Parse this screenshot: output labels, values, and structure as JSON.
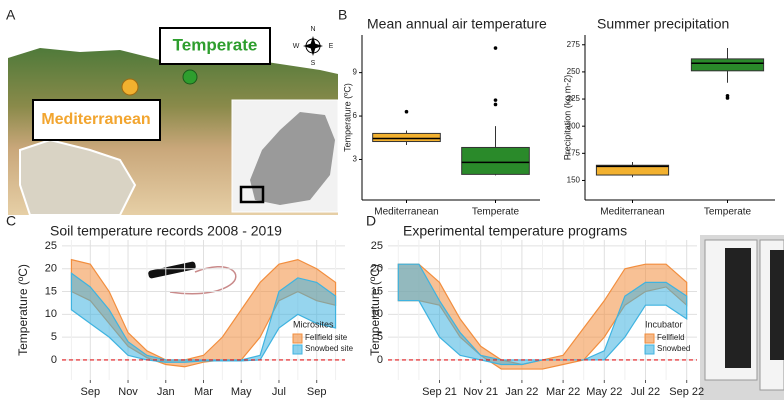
{
  "panel_labels": [
    "A",
    "B",
    "C",
    "D"
  ],
  "map": {
    "labels": [
      "Temperate",
      "Mediterranean"
    ],
    "compass": [
      "N",
      "S",
      "W",
      "E"
    ]
  },
  "chart_data": [
    {
      "type": "box",
      "title": "Mean annual air temperature",
      "y_label": "Temperature (ºC)",
      "categories": [
        "Mediterranean",
        "Temperate"
      ],
      "colors": [
        "#f2b12f",
        "#2a8a2a"
      ],
      "boxes": [
        {
          "min": 4.0,
          "q1": 4.24,
          "median": 4.45,
          "q3": 4.8,
          "max": 5.0,
          "outliers": [
            6.3
          ]
        },
        {
          "min": 1.9,
          "q1": 1.97,
          "median": 2.8,
          "q3": 3.83,
          "max": 5.3,
          "outliers": [
            6.8,
            7.1,
            10.7
          ]
        }
      ],
      "ylim": [
        0.2,
        11.6
      ],
      "yticks": [
        3,
        6,
        9
      ]
    },
    {
      "type": "box",
      "title": "Summer precipitation",
      "y_label": "Precipitation (kg m-2)",
      "categories": [
        "Mediterranean",
        "Temperate"
      ],
      "colors": [
        "#f2b12f",
        "#2a8a2a"
      ],
      "boxes": [
        {
          "min": 153,
          "q1": 155,
          "median": 163,
          "q3": 164,
          "max": 167,
          "outliers": []
        },
        {
          "min": 240,
          "q1": 251,
          "median": 258,
          "q3": 262,
          "max": 272,
          "outliers": [
            226,
            228
          ]
        }
      ],
      "ylim": [
        132,
        284
      ],
      "yticks": [
        150,
        175,
        200,
        225,
        250,
        275
      ]
    },
    {
      "type": "ribbon",
      "title": "Soil temperature records 2008 - 2019",
      "y_label": "Temperature (ºC)",
      "categories": [
        null,
        "Sep",
        null,
        "Nov",
        null,
        "Jan",
        null,
        "Mar",
        null,
        "May",
        null,
        "Jul",
        null,
        "Sep",
        null
      ],
      "series": [
        {
          "name": "Fellfield site",
          "color": "#f28e3e",
          "upper": [
            22,
            21,
            15,
            6,
            2,
            0,
            0,
            1,
            5,
            11,
            17,
            21,
            22,
            20,
            17
          ],
          "lower": [
            15,
            13,
            8,
            3,
            0.5,
            -1,
            -1.5,
            -0.5,
            0,
            0,
            5,
            13,
            15,
            13,
            12
          ]
        },
        {
          "name": "Snowbed site",
          "color": "#3fb3e0",
          "upper": [
            19,
            16,
            11,
            4,
            1,
            0,
            0,
            0,
            0,
            0,
            1,
            15,
            18,
            17,
            14
          ],
          "lower": [
            11,
            8,
            5,
            1,
            0,
            -0.5,
            -0.5,
            -0.2,
            -0.2,
            -0.2,
            0,
            7,
            10,
            8,
            7
          ]
        }
      ],
      "legend_title": "Microsites",
      "reference_line": 0,
      "ylim": [
        -4.4,
        26.3
      ],
      "yticks": [
        0,
        5,
        10,
        15,
        20,
        25
      ],
      "grid": true
    },
    {
      "type": "ribbon",
      "title": "Experimental temperature programs",
      "y_label": "Temperature (ºC)",
      "categories": [
        null,
        null,
        "Sep 21",
        null,
        "Nov 21",
        null,
        "Jan 22",
        null,
        "Mar 22",
        null,
        "May 22",
        null,
        "Jul 22",
        null,
        "Sep 22"
      ],
      "series": [
        {
          "name": "Fellfield",
          "color": "#f28e3e",
          "upper": [
            21,
            21,
            17,
            9,
            3,
            0,
            -1,
            0,
            1,
            7,
            13,
            20,
            21,
            21,
            17
          ],
          "lower": [
            13,
            13,
            12,
            5,
            1,
            -2,
            -2,
            -2,
            -1,
            0,
            5,
            12,
            15,
            16,
            12
          ]
        },
        {
          "name": "Snowbed",
          "color": "#3fb3e0",
          "upper": [
            21,
            21,
            13,
            6,
            1,
            0,
            0,
            0,
            0,
            0,
            2,
            14,
            17,
            17,
            14
          ],
          "lower": [
            13,
            13,
            5,
            1,
            0,
            -1,
            -1,
            0,
            0,
            0,
            0,
            5,
            12,
            12,
            9
          ]
        }
      ],
      "legend_title": "Incubator",
      "reference_line": 0,
      "ylim": [
        -4.4,
        26.3
      ],
      "yticks": [
        0,
        5,
        10,
        15,
        20,
        25
      ],
      "grid": true
    }
  ]
}
